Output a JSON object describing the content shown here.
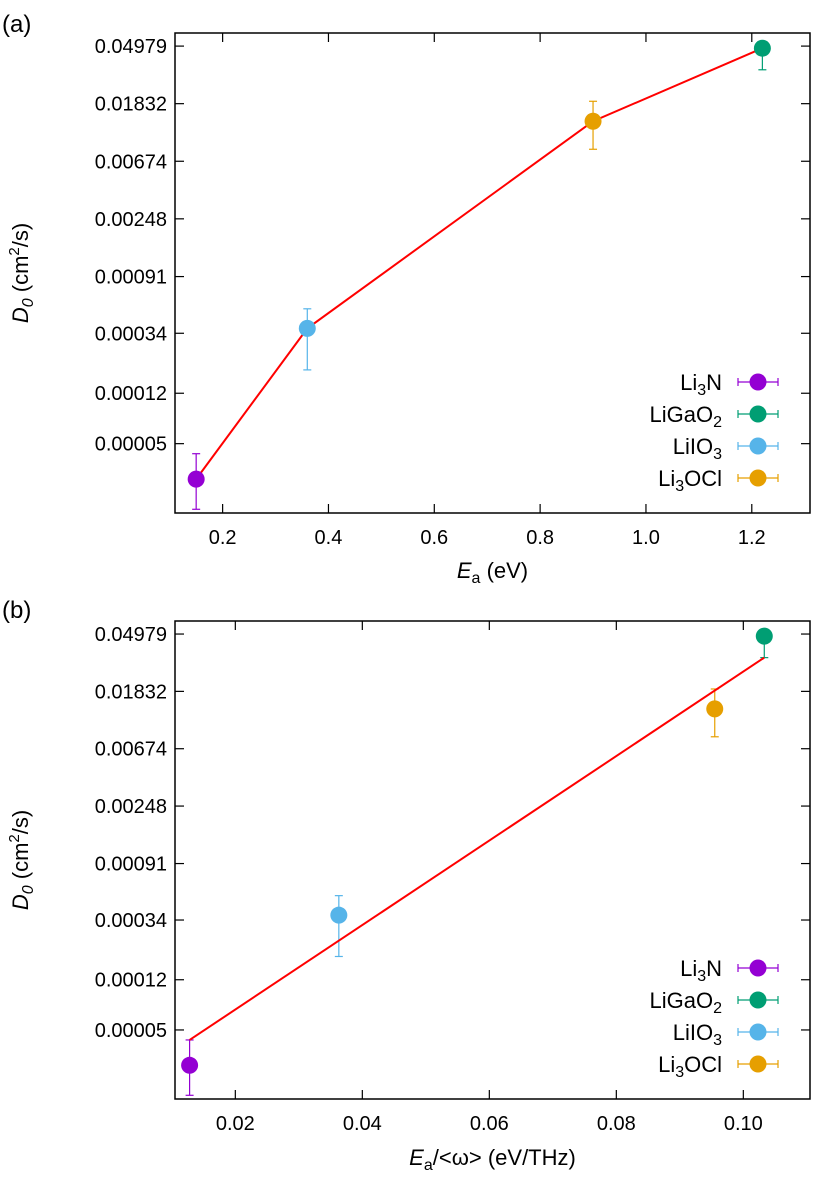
{
  "chart_data": [
    {
      "type": "scatter",
      "panel_label": "(a)",
      "xlabel": {
        "main": "E",
        "sub": "a",
        "rest": " (eV)"
      },
      "ylabel": {
        "main": "D",
        "sub": "0",
        "rest1": " (cm",
        "sup": "2",
        "rest2": "/s)"
      },
      "y_scale": "log",
      "xlim": [
        0.11,
        1.31
      ],
      "ylim": [
        1.5e-05,
        0.0625
      ],
      "x_ticks": [
        0.2,
        0.4,
        0.6,
        0.8,
        1.0,
        1.2
      ],
      "x_tick_labels": [
        "0.2",
        "0.4",
        "0.6",
        "0.8",
        "1.0",
        "1.2"
      ],
      "y_ticks": [
        5e-05,
        0.00012,
        0.00034,
        0.00091,
        0.00248,
        0.00674,
        0.01832,
        0.04979
      ],
      "y_tick_labels": [
        "0.00005",
        "0.00012",
        "0.00034",
        "0.00091",
        "0.00248",
        "0.00674",
        "0.01832",
        "0.04979"
      ],
      "series": [
        {
          "name": "Li3N",
          "label": {
            "a": "Li",
            "sub": "3",
            "b": "N"
          },
          "color": "#9400d3",
          "x": 0.15,
          "y": 2.7e-05,
          "err_low": 1.6e-05,
          "err_high": 4.2e-05
        },
        {
          "name": "LiGaO2",
          "label": {
            "a": "LiGaO",
            "sub": "2",
            "b": ""
          },
          "color": "#009e73",
          "x": 1.22,
          "y": 0.048,
          "err_low": 0.033,
          "err_high": 0.05
        },
        {
          "name": "LiIO3",
          "label": {
            "a": "LiIO",
            "sub": "3",
            "b": ""
          },
          "color": "#56b4e9",
          "x": 0.36,
          "y": 0.00037,
          "err_low": 0.00018,
          "err_high": 0.00052
        },
        {
          "name": "Li3OCl",
          "label": {
            "a": "Li",
            "sub": "3",
            "b": "OCl"
          },
          "color": "#e69f00",
          "x": 0.9,
          "y": 0.0135,
          "err_low": 0.0083,
          "err_high": 0.0191
        }
      ],
      "fit_line": {
        "color": "#ff0000",
        "x": [
          0.15,
          0.36,
          0.9,
          1.22
        ],
        "y": [
          2.7e-05,
          0.00037,
          0.0135,
          0.048
        ]
      },
      "legend_position": "bottom-right",
      "grid": false
    },
    {
      "type": "scatter",
      "panel_label": "(b)",
      "xlabel": {
        "main": "E",
        "sub": "a",
        "rest": "/<ω> (eV/THz)"
      },
      "ylabel": {
        "main": "D",
        "sub": "0",
        "rest1": " (cm",
        "sup": "2",
        "rest2": "/s)"
      },
      "y_scale": "log",
      "xlim": [
        0.0105,
        0.1105
      ],
      "ylim": [
        1.5e-05,
        0.0625
      ],
      "x_ticks": [
        0.02,
        0.04,
        0.06,
        0.08,
        0.1
      ],
      "x_tick_labels": [
        "0.02",
        "0.04",
        "0.06",
        "0.08",
        "0.10"
      ],
      "y_ticks": [
        5e-05,
        0.00012,
        0.00034,
        0.00091,
        0.00248,
        0.00674,
        0.01832,
        0.04979
      ],
      "y_tick_labels": [
        "0.00005",
        "0.00012",
        "0.00034",
        "0.00091",
        "0.00248",
        "0.00674",
        "0.01832",
        "0.04979"
      ],
      "series": [
        {
          "name": "Li3N",
          "label": {
            "a": "Li",
            "sub": "3",
            "b": "N"
          },
          "color": "#9400d3",
          "x": 0.0128,
          "y": 2.7e-05,
          "err_low": 1.6e-05,
          "err_high": 4.2e-05
        },
        {
          "name": "LiGaO2",
          "label": {
            "a": "LiGaO",
            "sub": "2",
            "b": ""
          },
          "color": "#009e73",
          "x": 0.1033,
          "y": 0.048,
          "err_low": 0.033,
          "err_high": 0.05
        },
        {
          "name": "LiIO3",
          "label": {
            "a": "LiIO",
            "sub": "3",
            "b": ""
          },
          "color": "#56b4e9",
          "x": 0.0363,
          "y": 0.00037,
          "err_low": 0.00018,
          "err_high": 0.00052
        },
        {
          "name": "Li3OCl",
          "label": {
            "a": "Li",
            "sub": "3",
            "b": "OCl"
          },
          "color": "#e69f00",
          "x": 0.0955,
          "y": 0.0135,
          "err_low": 0.0083,
          "err_high": 0.0191
        }
      ],
      "fit_line": {
        "color": "#ff0000",
        "x": [
          0.0128,
          0.1033
        ],
        "y": [
          4.2e-05,
          0.033
        ]
      },
      "legend_position": "bottom-right",
      "grid": false
    }
  ]
}
